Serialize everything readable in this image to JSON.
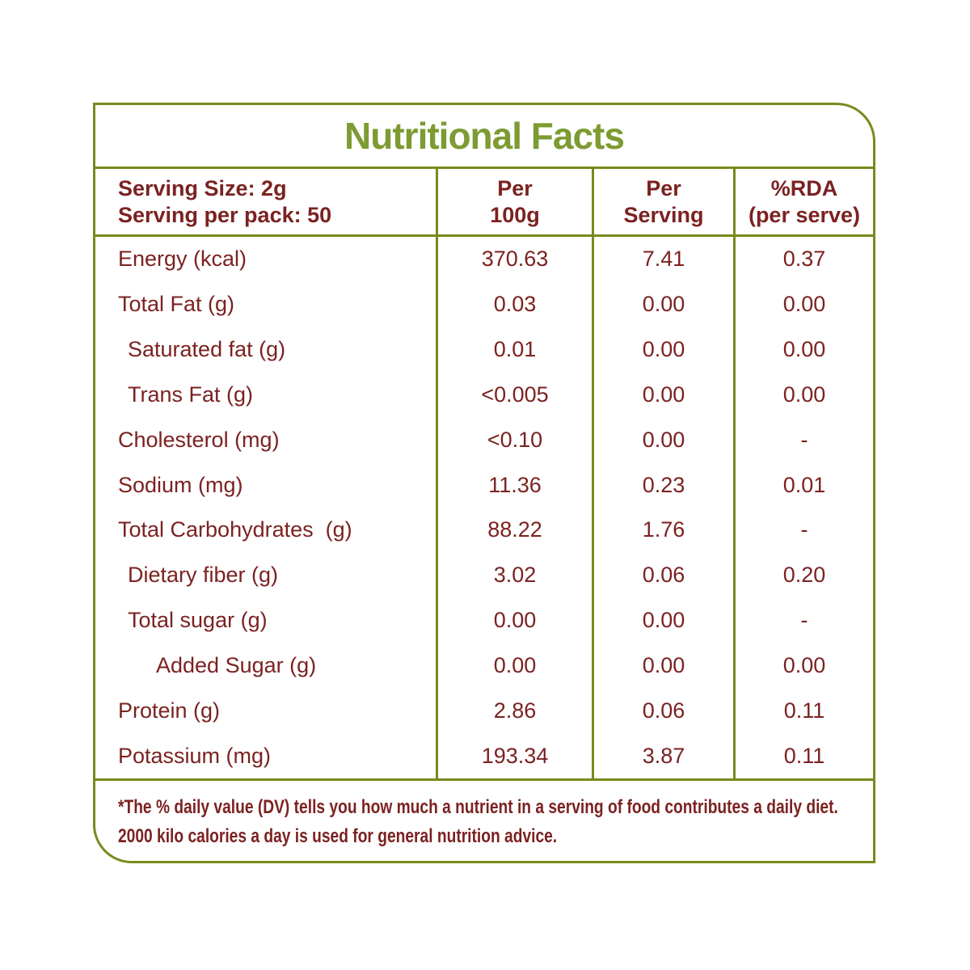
{
  "title": "Nutritional Facts",
  "colors": {
    "border_green": "#788a1c",
    "title_green": "#7d9b32",
    "text_maroon": "#7b2221"
  },
  "header": {
    "serving_size": "Serving Size: 2g",
    "servings_per_pack": "Serving per pack: 50",
    "col_per_100g_line1": "Per",
    "col_per_100g_line2": "100g",
    "col_per_serving_line1": "Per",
    "col_per_serving_line2": "Serving",
    "col_rda_line1": "%RDA",
    "col_rda_line2": "(per serve)"
  },
  "rows": [
    {
      "label": "Energy (kcal)",
      "indent": 0,
      "per_100g": "370.63",
      "per_serving": "7.41",
      "rda_per_serve": "0.37"
    },
    {
      "label": "Total Fat (g)",
      "indent": 0,
      "per_100g": "0.03",
      "per_serving": "0.00",
      "rda_per_serve": "0.00"
    },
    {
      "label": "Saturated fat (g)",
      "indent": 1,
      "per_100g": "0.01",
      "per_serving": "0.00",
      "rda_per_serve": "0.00"
    },
    {
      "label": "Trans Fat (g)",
      "indent": 1,
      "per_100g": "<0.005",
      "per_serving": "0.00",
      "rda_per_serve": "0.00"
    },
    {
      "label": "Cholesterol (mg)",
      "indent": 0,
      "per_100g": "<0.10",
      "per_serving": "0.00",
      "rda_per_serve": "-"
    },
    {
      "label": "Sodium (mg)",
      "indent": 0,
      "per_100g": "11.36",
      "per_serving": "0.23",
      "rda_per_serve": "0.01"
    },
    {
      "label": "Total Carbohydrates  (g)",
      "indent": 0,
      "per_100g": "88.22",
      "per_serving": "1.76",
      "rda_per_serve": "-"
    },
    {
      "label": "Dietary fiber (g)",
      "indent": 1,
      "per_100g": "3.02",
      "per_serving": "0.06",
      "rda_per_serve": "0.20"
    },
    {
      "label": "Total sugar (g)",
      "indent": 1,
      "per_100g": "0.00",
      "per_serving": "0.00",
      "rda_per_serve": "-"
    },
    {
      "label": "Added Sugar (g)",
      "indent": 2,
      "per_100g": "0.00",
      "per_serving": "0.00",
      "rda_per_serve": "0.00"
    },
    {
      "label": "Protein (g)",
      "indent": 0,
      "per_100g": "2.86",
      "per_serving": "0.06",
      "rda_per_serve": "0.11"
    },
    {
      "label": "Potassium (mg)",
      "indent": 0,
      "per_100g": "193.34",
      "per_serving": "3.87",
      "rda_per_serve": "0.11"
    }
  ],
  "footnote": "*The % daily value (DV) tells you how much a nutrient in a serving of food contributes a daily diet. 2000 kilo calories a day is used for general nutrition advice."
}
